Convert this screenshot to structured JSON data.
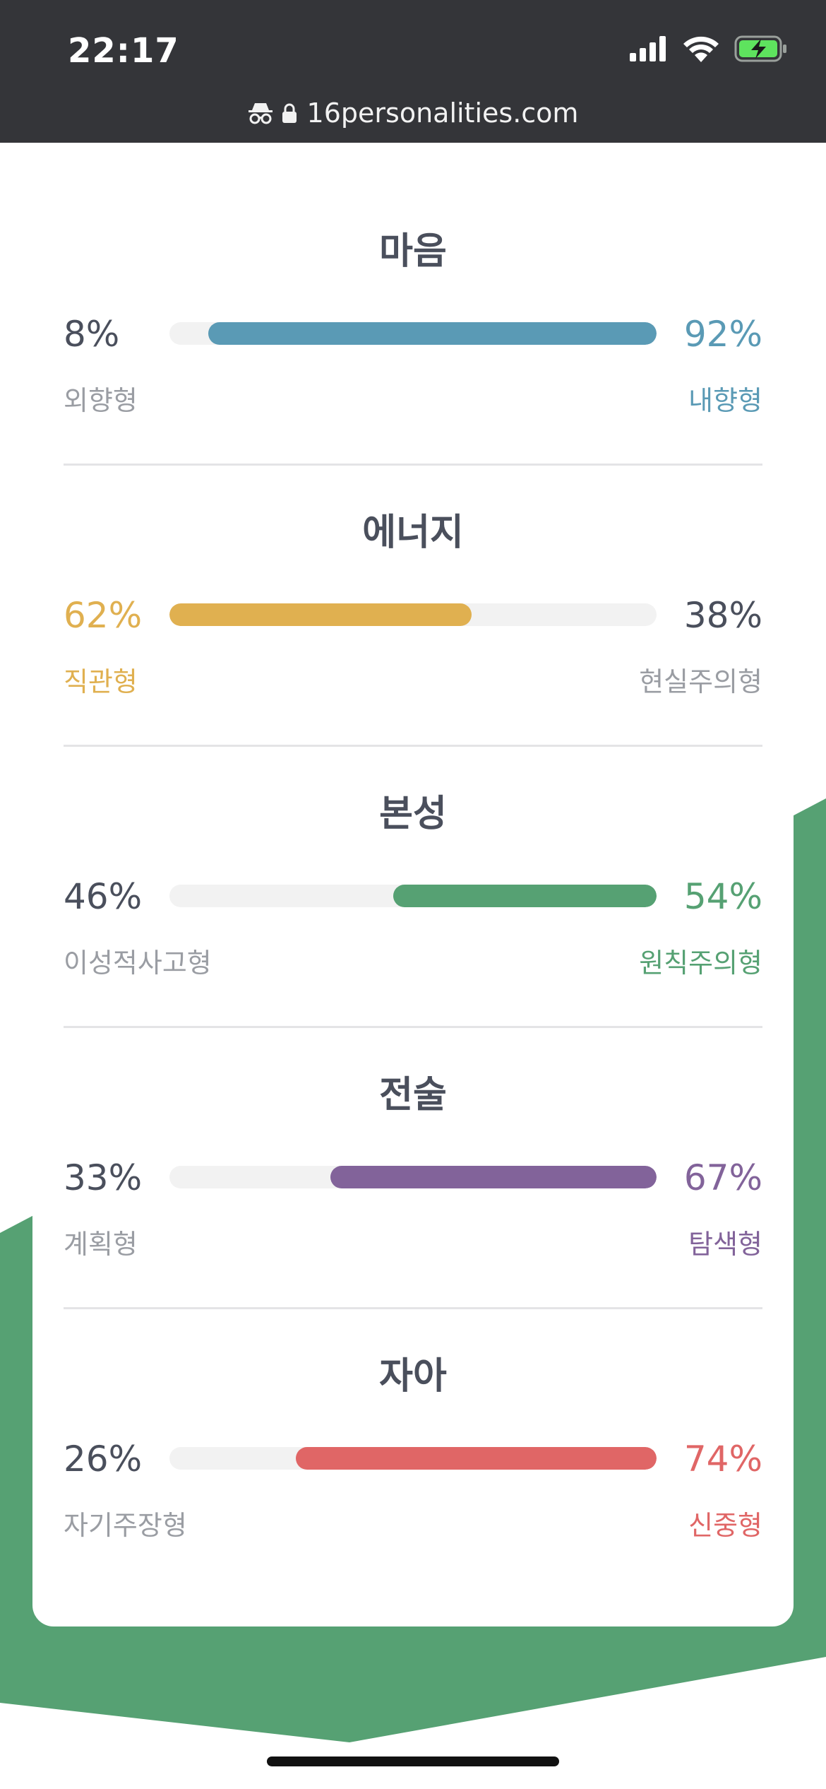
{
  "status_bar": {
    "time": "22:17"
  },
  "browser": {
    "url": "16personalities.com"
  },
  "colors": {
    "mind": "#5a9ab5",
    "energy": "#e0b050",
    "nature": "#56a173",
    "tactics": "#82639a",
    "identity": "#e06666",
    "background_shape": "#56a173"
  },
  "sections": [
    {
      "title": "마음",
      "left_pct": "8%",
      "right_pct": "92%",
      "left_trait": "외향형",
      "right_trait": "내향형",
      "dominant": "right",
      "fill_fraction": 0.92
    },
    {
      "title": "에너지",
      "left_pct": "62%",
      "right_pct": "38%",
      "left_trait": "직관형",
      "right_trait": "현실주의형",
      "dominant": "left",
      "fill_fraction": 0.62
    },
    {
      "title": "본성",
      "left_pct": "46%",
      "right_pct": "54%",
      "left_trait": "이성적사고형",
      "right_trait": "원칙주의형",
      "dominant": "right",
      "fill_fraction": 0.54
    },
    {
      "title": "전술",
      "left_pct": "33%",
      "right_pct": "67%",
      "left_trait": "계획형",
      "right_trait": "탐색형",
      "dominant": "right",
      "fill_fraction": 0.67
    },
    {
      "title": "자아",
      "left_pct": "26%",
      "right_pct": "74%",
      "left_trait": "자기주장형",
      "right_trait": "신중형",
      "dominant": "right",
      "fill_fraction": 0.74
    }
  ]
}
